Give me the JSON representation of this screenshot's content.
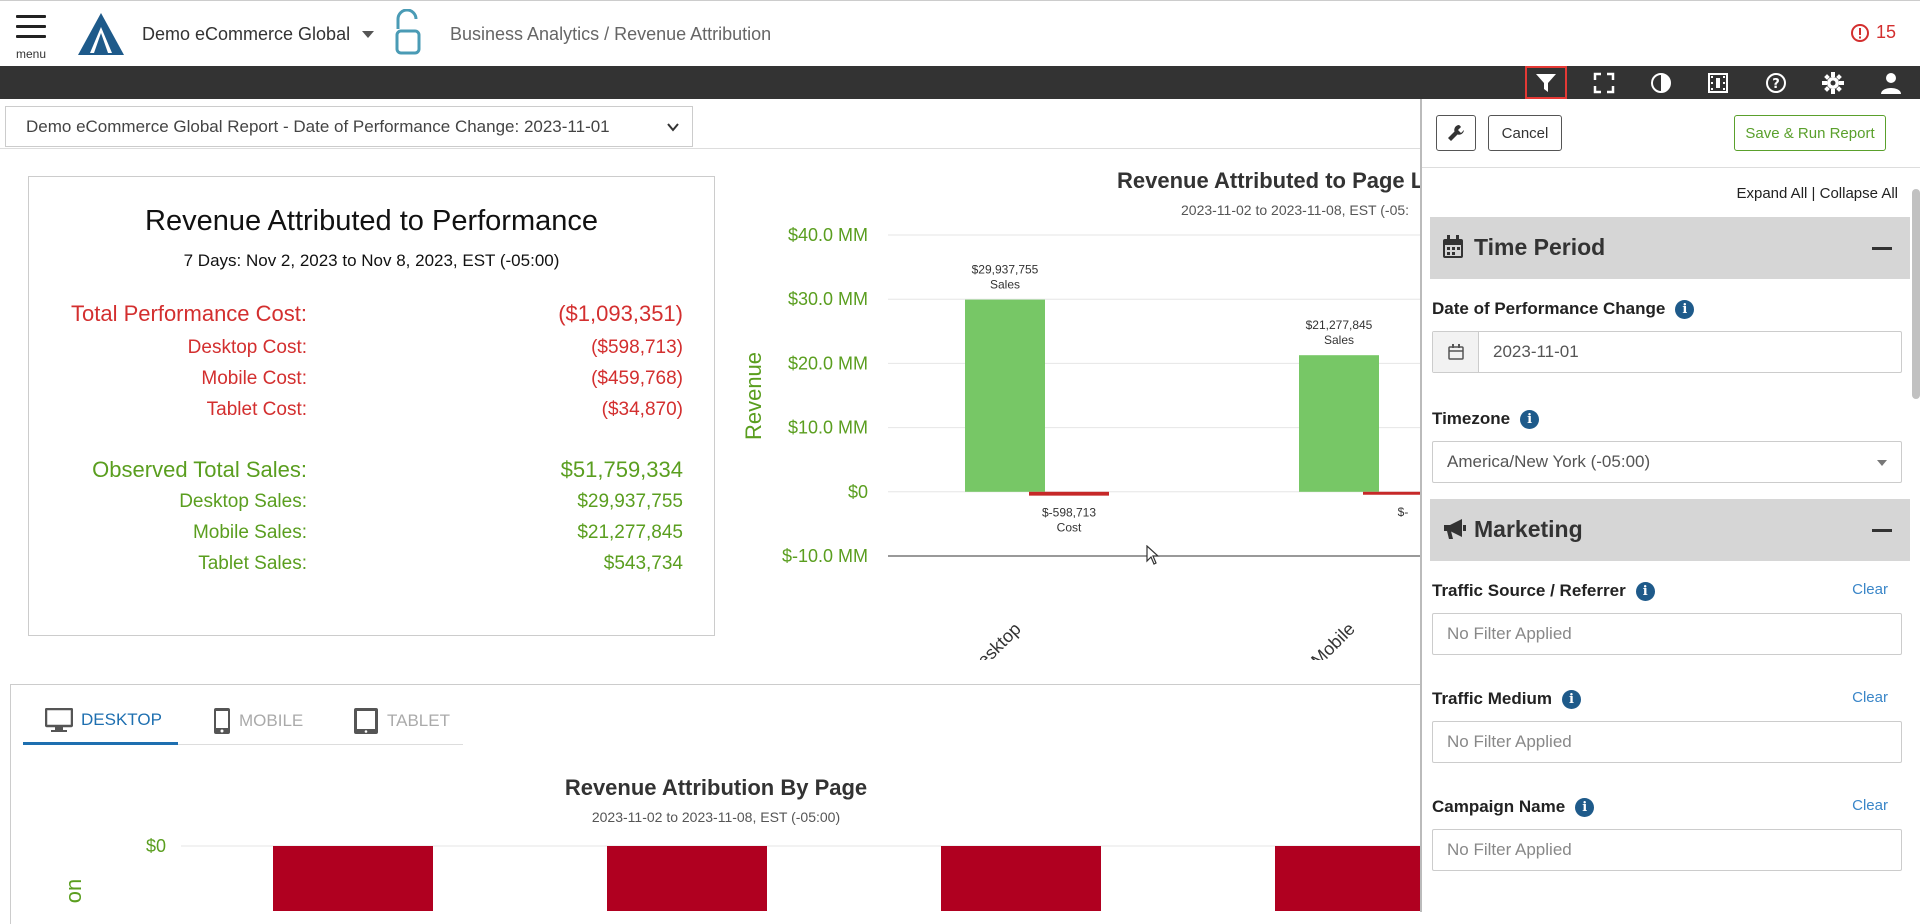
{
  "header": {
    "menu_label": "menu",
    "org_name": "Demo eCommerce Global",
    "breadcrumb": "Business Analytics / Revenue Attribution",
    "alert_count": "15"
  },
  "report_select": {
    "value": "Demo eCommerce Global Report - Date of Performance Change: 2023-11-01"
  },
  "summary": {
    "title": "Revenue Attributed to Performance",
    "subtitle": "7 Days: Nov 2, 2023 to Nov 8, 2023, EST (-05:00)",
    "cost_rows": [
      {
        "label": "Total Performance Cost:",
        "value": "($1,093,351)"
      },
      {
        "label": "Desktop Cost:",
        "value": "($598,713)"
      },
      {
        "label": "Mobile Cost:",
        "value": "($459,768)"
      },
      {
        "label": "Tablet Cost:",
        "value": "($34,870)"
      }
    ],
    "sales_rows": [
      {
        "label": "Observed Total Sales:",
        "value": "$51,759,334"
      },
      {
        "label": "Desktop Sales:",
        "value": "$29,937,755"
      },
      {
        "label": "Mobile Sales:",
        "value": "$21,277,845"
      },
      {
        "label": "Tablet Sales:",
        "value": "$543,734"
      }
    ]
  },
  "tabs": [
    {
      "label": "DESKTOP",
      "active": true
    },
    {
      "label": "MOBILE",
      "active": false
    },
    {
      "label": "TABLET",
      "active": false
    }
  ],
  "chart_data": [
    {
      "type": "bar",
      "title": "Revenue Attributed to Page Lo",
      "subtitle": "2023-11-02 to 2023-11-08, EST (-05:",
      "ylabel": "Revenue",
      "ylim": [
        -10000000,
        40000000
      ],
      "yticks": [
        "$40.0 MM",
        "$30.0 MM",
        "$20.0 MM",
        "$10.0 MM",
        "$0",
        "$-10.0 MM"
      ],
      "categories": [
        "Desktop",
        "Mobile"
      ],
      "series": [
        {
          "name": "Sales",
          "values": [
            29937755,
            21277845
          ],
          "labels": [
            "$29,937,755",
            "$21,277,845"
          ],
          "color": "#77c766"
        },
        {
          "name": "Cost",
          "values": [
            -598713,
            -459768
          ],
          "labels": [
            "$-598,713",
            "$-"
          ],
          "color": "#c62828"
        }
      ]
    },
    {
      "type": "bar",
      "title": "Revenue Attribution By Page",
      "subtitle": "2023-11-02 to 2023-11-08, EST (-05:00)",
      "yticks": [
        "$0"
      ],
      "ylabel_partial": "on",
      "bar_count_visible": 4,
      "color": "#b00020"
    }
  ],
  "panel": {
    "cancel_label": "Cancel",
    "save_label": "Save & Run Report",
    "expand_all": "Expand All",
    "collapse_all": "Collapse All",
    "separator": "|",
    "time_period_title": "Time Period",
    "date_label": "Date of Performance Change",
    "date_value": "2023-11-01",
    "timezone_label": "Timezone",
    "timezone_value": "America/New York (-05:00)",
    "marketing_title": "Marketing",
    "filters": [
      {
        "label": "Traffic Source / Referrer",
        "clear": "Clear",
        "placeholder": "No Filter Applied"
      },
      {
        "label": "Traffic Medium",
        "clear": "Clear",
        "placeholder": "No Filter Applied"
      },
      {
        "label": "Campaign Name",
        "clear": "Clear",
        "placeholder": "No Filter Applied"
      }
    ]
  },
  "colors": {
    "accent_blue": "#1e6fb0",
    "cost_red": "#d32f2f",
    "sales_green": "#5a9e1f",
    "toolbar": "#333333"
  }
}
